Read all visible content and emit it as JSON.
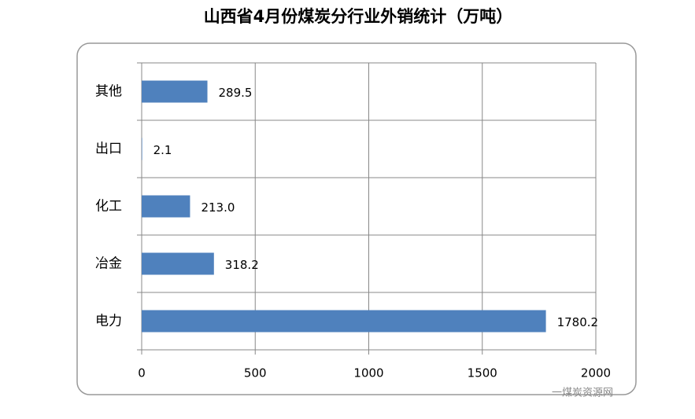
{
  "chart_data": {
    "type": "bar",
    "orientation": "horizontal",
    "title": "山西省4月份煤炭分行业外销统计（万吨）",
    "categories": [
      "其他",
      "出口",
      "化工",
      "冶金",
      "电力"
    ],
    "values": [
      289.5,
      2.1,
      213.0,
      318.2,
      1780.2
    ],
    "value_labels": [
      "289.5",
      "2.1",
      "213.0",
      "318.2",
      "1780.2"
    ],
    "color": "#4f81bd",
    "xlim": [
      0,
      2000
    ],
    "xticks": [
      0,
      500,
      1000,
      1500,
      2000
    ],
    "grid": true,
    "watermark": "一煤炭资源网"
  }
}
